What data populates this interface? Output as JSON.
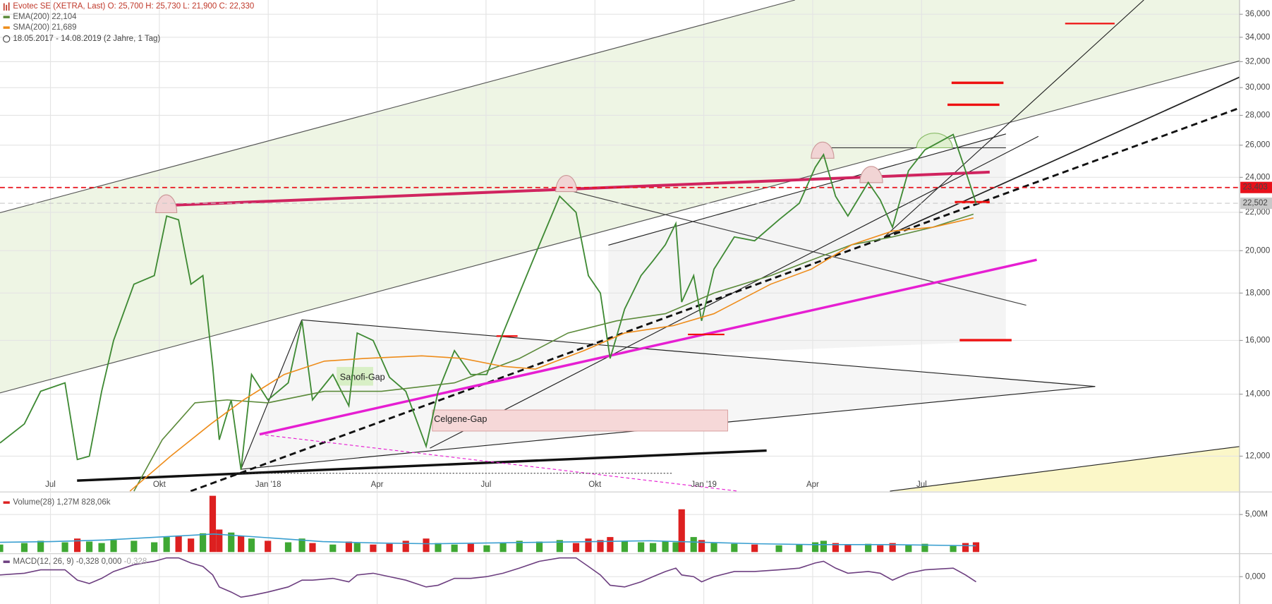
{
  "chart_data": [
    {
      "type": "line",
      "log_scale": true,
      "grid": true,
      "info": "O: 25,700  H: 25,730  L: 21,900  C: 22,330",
      "period": "18.05.2017 - 14.08.2019",
      "period_note": "(2 Jahre, 1 Tag)",
      "xlim": [
        4.61,
        38.76
      ],
      "xticks": [
        {
          "value": 6,
          "label": "Jul"
        },
        {
          "value": 9,
          "label": "Okt"
        },
        {
          "value": 12,
          "label": "Jan '18"
        },
        {
          "value": 15,
          "label": "Apr"
        },
        {
          "value": 18,
          "label": "Jul"
        },
        {
          "value": 21,
          "label": "Okt"
        },
        {
          "value": 24,
          "label": "Jan '19"
        },
        {
          "value": 27,
          "label": "Apr"
        },
        {
          "value": 30,
          "label": "Jul"
        }
      ],
      "ylim": [
        11.0,
        37.3
      ],
      "yticks": [
        {
          "value": 12,
          "label": "12,000"
        },
        {
          "value": 14,
          "label": "14,000"
        },
        {
          "value": 16,
          "label": "16,000"
        },
        {
          "value": 18,
          "label": "18,000"
        },
        {
          "value": 20,
          "label": "20,000"
        },
        {
          "value": 22,
          "label": "22,000"
        },
        {
          "value": 24,
          "label": "24,000"
        },
        {
          "value": 26,
          "label": "26,000"
        },
        {
          "value": 28,
          "label": "28,000"
        },
        {
          "value": 30,
          "label": "30,000"
        },
        {
          "value": 32,
          "label": "32,000"
        },
        {
          "value": 34,
          "label": "34,000"
        },
        {
          "value": 36,
          "label": "36,000"
        }
      ],
      "series": [
        {
          "name": "Evotec SE (XETRA, Last)",
          "color": "#3f8a34",
          "x": [
            4.61,
            5.28,
            5.73,
            6.4,
            6.74,
            7.07,
            7.41,
            7.74,
            8.3,
            8.86,
            9.2,
            9.53,
            9.87,
            10.2,
            10.47,
            10.65,
            10.98,
            11.25,
            11.54,
            11.99,
            12.55,
            12.93,
            13.22,
            13.78,
            14.22,
            14.45,
            14.89,
            15.34,
            15.79,
            16.35,
            16.68,
            17.13,
            17.58,
            18.02,
            18.47,
            18.92,
            19.47,
            20.03,
            20.48,
            20.82,
            21.15,
            21.42,
            21.82,
            22.27,
            22.6,
            22.94,
            23.23,
            23.39,
            23.72,
            23.94,
            24.28,
            24.84,
            25.4,
            26.07,
            26.63,
            27.07,
            27.3,
            27.63,
            27.97,
            28.53,
            28.86,
            29.2,
            29.64,
            30.09,
            30.87,
            31.21,
            31.5
          ],
          "values": [
            12.4,
            13.0,
            14.1,
            14.4,
            11.9,
            12.0,
            14.1,
            16.0,
            18.4,
            18.8,
            21.8,
            21.6,
            18.4,
            18.8,
            15.0,
            12.5,
            13.8,
            11.6,
            14.7,
            13.8,
            14.4,
            16.8,
            13.8,
            14.7,
            13.6,
            16.3,
            16.0,
            14.6,
            14.1,
            12.3,
            14.1,
            15.6,
            14.7,
            14.7,
            16.3,
            18.0,
            20.3,
            22.9,
            22.0,
            18.8,
            18.0,
            15.3,
            17.3,
            18.8,
            19.5,
            20.3,
            21.4,
            17.6,
            18.8,
            16.8,
            19.1,
            20.7,
            20.5,
            21.6,
            22.5,
            24.6,
            25.4,
            22.9,
            21.8,
            23.7,
            22.7,
            21.2,
            24.4,
            25.7,
            26.7,
            24.4,
            22.5
          ]
        },
        {
          "name": "EMA(200)",
          "color": "#5b8a3a",
          "legend_value": {
            "value": 22.104,
            "label": "22,104"
          },
          "x": [
            8.3,
            9.08,
            9.98,
            10.87,
            11.99,
            13.55,
            15.12,
            17.13,
            18.92,
            20.26,
            21.6,
            22.94,
            24.28,
            25.84,
            28.08,
            29.2,
            30.31,
            31.43
          ],
          "values": [
            11.0,
            12.5,
            13.7,
            13.8,
            13.7,
            14.1,
            14.1,
            14.4,
            15.3,
            16.3,
            16.8,
            17.1,
            18.0,
            18.8,
            20.3,
            20.7,
            21.2,
            21.9
          ]
        },
        {
          "name": "SMA(200)",
          "color": "#ee8c1a",
          "legend_value": {
            "value": 21.689,
            "label": "21,689"
          },
          "x": [
            8.19,
            9.31,
            10.42,
            11.32,
            12.44,
            13.55,
            14.67,
            16.23,
            17.35,
            18.47,
            19.36,
            20.7,
            21.82,
            23.16,
            24.28,
            25.84,
            26.96,
            28.08,
            29.2,
            30.31,
            31.43
          ],
          "values": [
            11.0,
            12.0,
            13.0,
            13.8,
            14.7,
            15.2,
            15.3,
            15.4,
            15.3,
            15.0,
            14.9,
            15.6,
            16.3,
            16.6,
            17.1,
            18.4,
            19.1,
            20.3,
            21.0,
            21.2,
            21.7
          ]
        }
      ],
      "markers": [
        {
          "value": 23.403,
          "label": "23,403",
          "color": "#e8101a"
        },
        {
          "value": 22.502,
          "label": "22,502",
          "color": "#c8c8c8"
        }
      ],
      "annotations": [
        "Sanofi-Gap",
        "Celgene-Gap"
      ]
    },
    {
      "type": "bar",
      "xlim": [
        4.61,
        38.76
      ],
      "ylim": [
        0,
        7.9
      ],
      "yticks": [
        {
          "value": 5,
          "label": "5,00M"
        }
      ],
      "series": [
        {
          "name": "Volume(28)",
          "up_color": "#3fa834",
          "down_color": "#dd2020",
          "legend_value": {
            "value": 1.27,
            "label": "1,27M"
          },
          "x": [
            4.61,
            5.28,
            5.73,
            6.4,
            6.74,
            7.07,
            7.41,
            7.74,
            8.3,
            8.86,
            9.2,
            9.53,
            9.87,
            10.2,
            10.47,
            10.65,
            10.98,
            11.25,
            11.54,
            11.99,
            12.55,
            12.93,
            13.22,
            13.78,
            14.22,
            14.45,
            14.89,
            15.34,
            15.79,
            16.35,
            16.68,
            17.13,
            17.58,
            18.02,
            18.47,
            18.92,
            19.47,
            20.03,
            20.48,
            20.82,
            21.15,
            21.42,
            21.82,
            22.27,
            22.6,
            22.94,
            23.23,
            23.39,
            23.72,
            23.94,
            24.28,
            24.84,
            25.4,
            26.07,
            26.63,
            27.07,
            27.3,
            27.63,
            27.97,
            28.53,
            28.86,
            29.2,
            29.64,
            30.09,
            30.87,
            31.21,
            31.5
          ],
          "values": [
            1.0,
            1.2,
            1.5,
            1.3,
            1.8,
            1.4,
            1.2,
            1.6,
            1.5,
            1.3,
            2.0,
            2.2,
            1.8,
            2.5,
            7.5,
            3.0,
            2.6,
            2.2,
            1.8,
            1.5,
            1.3,
            1.8,
            1.2,
            1.0,
            1.4,
            1.2,
            1.0,
            1.1,
            1.5,
            1.8,
            1.2,
            1.0,
            1.1,
            0.9,
            1.3,
            1.5,
            1.4,
            1.6,
            1.2,
            1.8,
            1.6,
            2.0,
            1.5,
            1.3,
            1.2,
            1.4,
            1.3,
            5.7,
            2.0,
            1.6,
            1.2,
            1.1,
            1.0,
            0.9,
            1.0,
            1.3,
            1.5,
            1.2,
            1.0,
            1.1,
            0.9,
            1.2,
            1.0,
            1.1,
            0.9,
            1.2,
            1.3
          ]
        },
        {
          "kind": "line",
          "color": "#3a9fd0",
          "legend_value": {
            "value": 0.82806,
            "label": "828,06k"
          },
          "x": [
            4.61,
            6,
            7.5,
            9,
            10.5,
            12,
            13.5,
            15,
            16.5,
            18,
            19.5,
            21,
            22.5,
            24,
            25.5,
            27,
            29,
            31.5
          ],
          "values": [
            1.3,
            1.4,
            1.6,
            2.0,
            2.4,
            1.9,
            1.4,
            1.2,
            1.1,
            1.2,
            1.3,
            1.4,
            1.5,
            1.3,
            1.1,
            1.0,
            1.0,
            0.83
          ]
        }
      ]
    },
    {
      "type": "line",
      "xlim": [
        4.61,
        38.76
      ],
      "ylim": [
        -1.6,
        1.3
      ],
      "yticks": [
        {
          "value": 0,
          "label": "0,000"
        }
      ],
      "series": [
        {
          "name": "MACD(12, 26, 9)",
          "color": "#6d3f80",
          "legend_values": [
            {
              "value": -0.328,
              "label": "-0,328"
            },
            {
              "value": 0,
              "label": "0,000"
            },
            {
              "value": -0.328,
              "label": "-0,328"
            }
          ],
          "x": [
            4.61,
            5.28,
            5.73,
            6.4,
            6.74,
            7.07,
            7.41,
            7.74,
            8.3,
            8.86,
            9.2,
            9.53,
            9.87,
            10.2,
            10.47,
            10.65,
            10.98,
            11.25,
            11.54,
            11.99,
            12.55,
            12.93,
            13.22,
            13.78,
            14.22,
            14.45,
            14.89,
            15.34,
            15.79,
            16.35,
            16.68,
            17.13,
            17.58,
            18.02,
            18.47,
            18.92,
            19.47,
            20.03,
            20.48,
            20.82,
            21.15,
            21.42,
            21.82,
            22.27,
            22.6,
            22.94,
            23.23,
            23.39,
            23.72,
            23.94,
            24.28,
            24.84,
            25.4,
            26.07,
            26.63,
            27.07,
            27.3,
            27.63,
            27.97,
            28.53,
            28.86,
            29.2,
            29.64,
            30.09,
            30.87,
            31.21,
            31.5
          ],
          "values": [
            0.1,
            0.2,
            0.4,
            0.4,
            -0.2,
            -0.4,
            -0.1,
            0.3,
            0.7,
            0.9,
            1.1,
            1.1,
            0.8,
            0.6,
            0.1,
            -0.6,
            -0.9,
            -1.2,
            -1.1,
            -0.9,
            -0.6,
            -0.2,
            -0.2,
            -0.1,
            -0.3,
            0.1,
            0.2,
            0.0,
            -0.2,
            -0.6,
            -0.5,
            -0.1,
            -0.1,
            0.0,
            0.2,
            0.5,
            0.9,
            1.1,
            1.1,
            0.6,
            0.1,
            -0.5,
            -0.6,
            -0.3,
            0.0,
            0.3,
            0.5,
            0.1,
            0.0,
            -0.3,
            0.0,
            0.3,
            0.3,
            0.4,
            0.5,
            0.8,
            0.9,
            0.5,
            0.2,
            0.3,
            0.2,
            -0.2,
            0.2,
            0.4,
            0.5,
            0.1,
            -0.3
          ]
        }
      ]
    }
  ]
}
